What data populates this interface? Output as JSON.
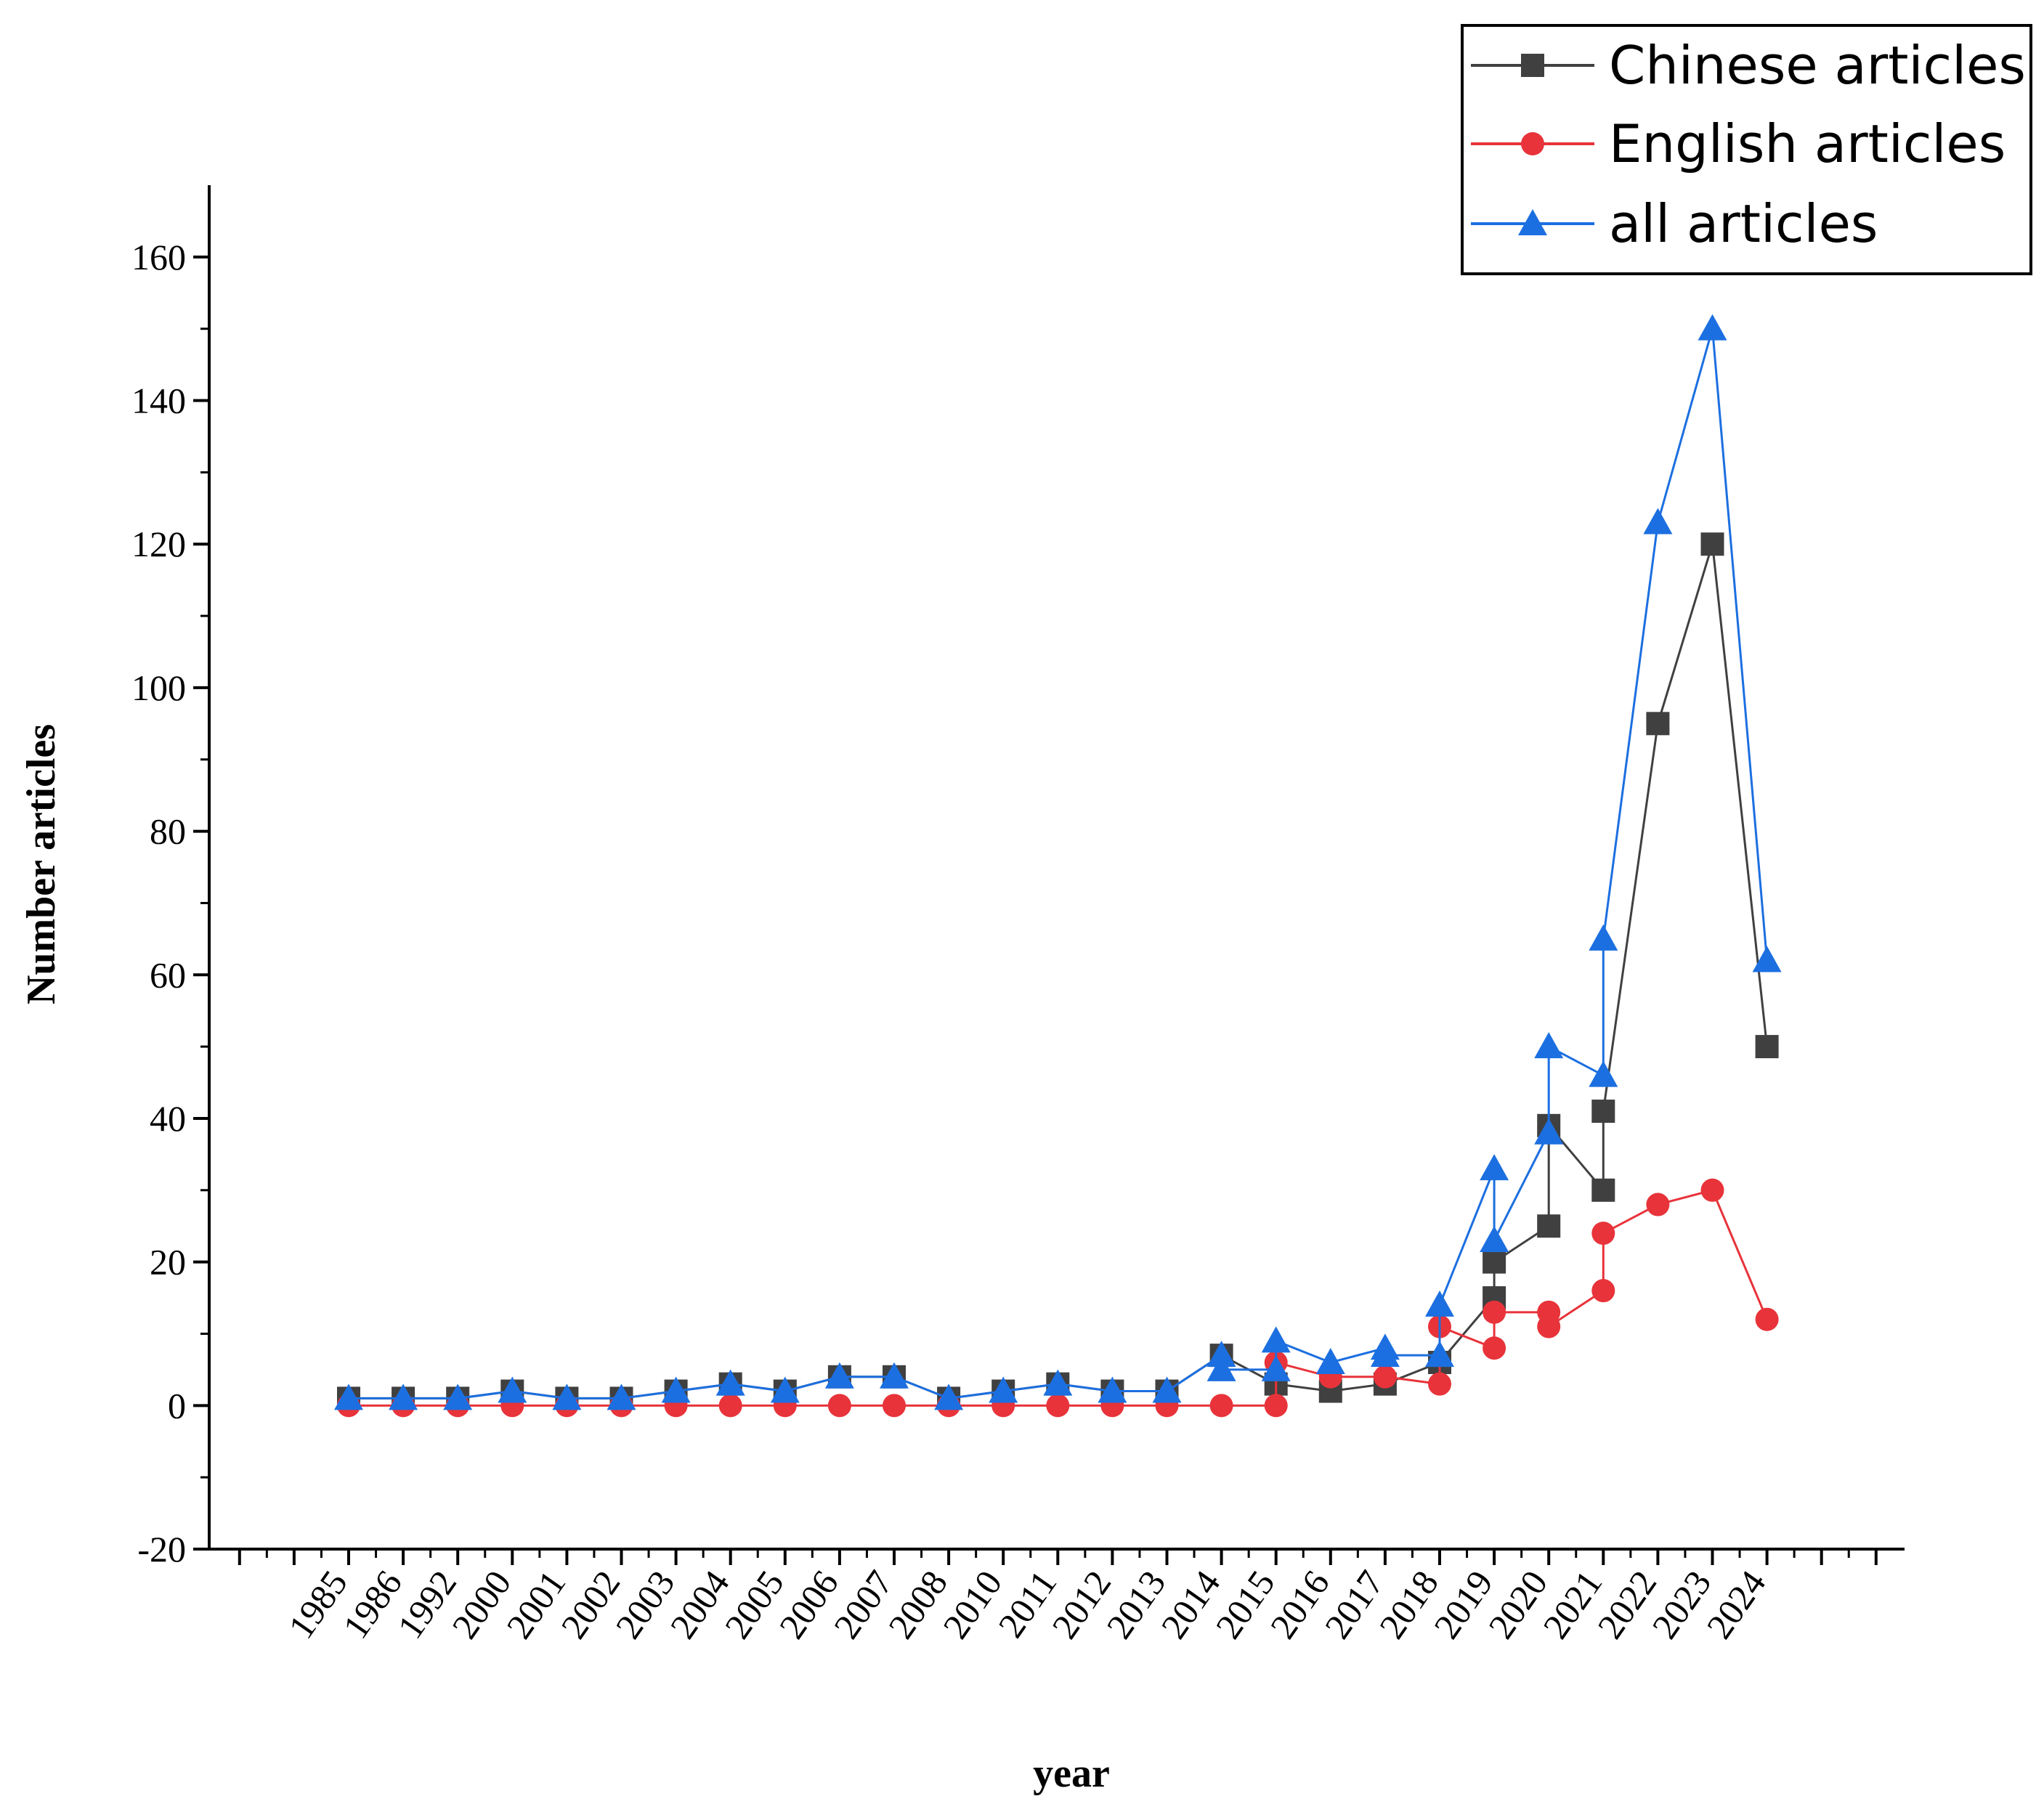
{
  "chart_data": {
    "type": "line",
    "xlabel": "year",
    "ylabel": "Number articles",
    "ylim": [
      -20,
      170
    ],
    "yticks": [
      -20,
      0,
      20,
      40,
      60,
      80,
      100,
      120,
      140,
      160
    ],
    "categories": [
      "1985",
      "1986",
      "1992",
      "2000",
      "2001",
      "2002",
      "2003",
      "2004",
      "2005",
      "2006",
      "2007",
      "2008",
      "2010",
      "2011",
      "2012",
      "2013",
      "2014",
      "2015",
      "2016",
      "2017",
      "2018",
      "2019",
      "2020",
      "2021",
      "2022",
      "2023",
      "2024"
    ],
    "grid": false,
    "legend_position": "top-right",
    "series": [
      {
        "name": "Chinese articles",
        "color": "#404040",
        "marker": "square",
        "points": [
          [
            0,
            1
          ],
          [
            1,
            1
          ],
          [
            2,
            1
          ],
          [
            3,
            2
          ],
          [
            4,
            1
          ],
          [
            5,
            1
          ],
          [
            6,
            2
          ],
          [
            7,
            3
          ],
          [
            8,
            2
          ],
          [
            9,
            4
          ],
          [
            10,
            4
          ],
          [
            11,
            1
          ],
          [
            12,
            2
          ],
          [
            13,
            3
          ],
          [
            14,
            2
          ],
          [
            15,
            2
          ],
          [
            16,
            7
          ],
          [
            17,
            3
          ],
          [
            18,
            2
          ],
          [
            19,
            3
          ],
          [
            20,
            6
          ],
          [
            21,
            15
          ],
          [
            21,
            20
          ],
          [
            22,
            25
          ],
          [
            22,
            39
          ],
          [
            23,
            30
          ],
          [
            23,
            41
          ],
          [
            24,
            95
          ],
          [
            25,
            120
          ],
          [
            26,
            50
          ]
        ]
      },
      {
        "name": "English articles",
        "color": "#e8333a",
        "marker": "circle",
        "points": [
          [
            0,
            0
          ],
          [
            1,
            0
          ],
          [
            2,
            0
          ],
          [
            3,
            0
          ],
          [
            4,
            0
          ],
          [
            5,
            0
          ],
          [
            6,
            0
          ],
          [
            7,
            0
          ],
          [
            8,
            0
          ],
          [
            9,
            0
          ],
          [
            10,
            0
          ],
          [
            11,
            0
          ],
          [
            12,
            0
          ],
          [
            13,
            0
          ],
          [
            14,
            0
          ],
          [
            15,
            0
          ],
          [
            16,
            0
          ],
          [
            17,
            0
          ],
          [
            17,
            6
          ],
          [
            18,
            4
          ],
          [
            19,
            4
          ],
          [
            20,
            3
          ],
          [
            20,
            11
          ],
          [
            21,
            8
          ],
          [
            21,
            13
          ],
          [
            22,
            13
          ],
          [
            22,
            11
          ],
          [
            23,
            16
          ],
          [
            23,
            24
          ],
          [
            24,
            28
          ],
          [
            25,
            30
          ],
          [
            26,
            12
          ]
        ]
      },
      {
        "name": "all articles",
        "color": "#1c6fe0",
        "marker": "triangle",
        "points": [
          [
            0,
            1
          ],
          [
            1,
            1
          ],
          [
            2,
            1
          ],
          [
            3,
            2
          ],
          [
            4,
            1
          ],
          [
            5,
            1
          ],
          [
            6,
            2
          ],
          [
            7,
            3
          ],
          [
            8,
            2
          ],
          [
            9,
            4
          ],
          [
            10,
            4
          ],
          [
            11,
            1
          ],
          [
            12,
            2
          ],
          [
            13,
            3
          ],
          [
            14,
            2
          ],
          [
            15,
            2
          ],
          [
            16,
            7
          ],
          [
            16,
            5
          ],
          [
            17,
            5
          ],
          [
            17,
            9
          ],
          [
            18,
            6
          ],
          [
            19,
            8
          ],
          [
            19,
            7
          ],
          [
            20,
            7
          ],
          [
            20,
            14
          ],
          [
            21,
            33
          ],
          [
            21,
            23
          ],
          [
            22,
            38
          ],
          [
            22,
            50
          ],
          [
            23,
            46
          ],
          [
            23,
            65
          ],
          [
            24,
            123
          ],
          [
            25,
            150
          ],
          [
            26,
            62
          ]
        ]
      }
    ]
  }
}
